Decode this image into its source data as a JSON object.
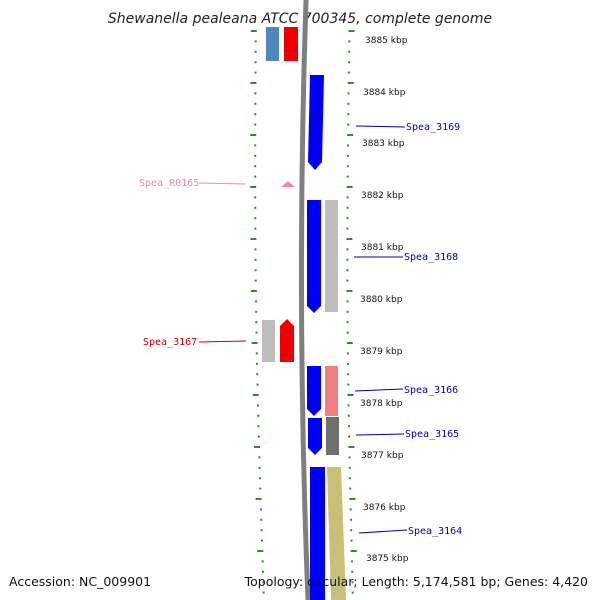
{
  "title": "Shewanella pealeana ATCC 700345, complete genome",
  "footer": {
    "accession": "Accession: NC_009901",
    "summary": "Topology: circular; Length: 5,174,581 bp; Genes: 4,420"
  },
  "colors": {
    "backbone": "#7f7f7f",
    "tick_dots": "#2e8b2e",
    "cds_blue": "#0000ee",
    "cds_red": "#ee0000",
    "rna_pink": "#ee88aa",
    "hit_grey": "#bdbdbd",
    "hit_salmon": "#f08080",
    "hit_dark": "#6f6f6f",
    "hit_khaki": "#c8c078",
    "hit_steelblue": "#4f86c0"
  },
  "ticks": [
    "3885 kbp",
    "3884 kbp",
    "3883 kbp",
    "3882 kbp",
    "3881 kbp",
    "3880 kbp",
    "3879 kbp",
    "3878 kbp",
    "3877 kbp",
    "3876 kbp",
    "3875 kbp"
  ],
  "gene_labels": [
    {
      "name": "Spea_3169",
      "color": "#0000aa"
    },
    {
      "name": "Spea_R0165",
      "color": "#ee88aa"
    },
    {
      "name": "Spea_3168",
      "color": "#0000aa"
    },
    {
      "name": "Spea_3167",
      "color": "#cc0000"
    },
    {
      "name": "Spea_3166",
      "color": "#0000aa"
    },
    {
      "name": "Spea_3165",
      "color": "#0000aa"
    },
    {
      "name": "Spea_3164",
      "color": "#0000aa"
    }
  ]
}
